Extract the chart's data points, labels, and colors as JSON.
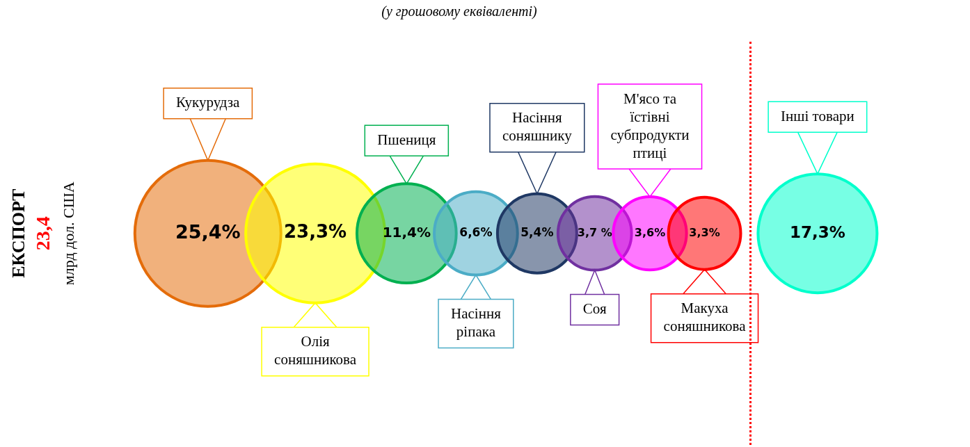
{
  "chart_data": {
    "type": "other",
    "subtitle": "(у грошовому еквіваленті)",
    "categories": [
      "Кукурудза",
      "Олія соняшникова",
      "Пшениця",
      "Насіння ріпака",
      "Насіння соняшнику",
      "Соя",
      "М'ясо та їстівні субпродукти птиці",
      "Макуха соняшникова",
      "Інші товари"
    ],
    "values": [
      25.4,
      23.3,
      11.4,
      6.6,
      5.4,
      3.7,
      3.6,
      3.3,
      17.3
    ],
    "value_labels": [
      "25,4%",
      "23,3%",
      "11,4%",
      "6,6%",
      "5,4%",
      "3,7 %",
      "3,6%",
      "3,3%",
      "17,3%"
    ],
    "colors": [
      "#e46c0a",
      "#ffff00",
      "#00b050",
      "#4bacc6",
      "#1f3864",
      "#7030a0",
      "#ff00ff",
      "#ff0000",
      "#00ffcc"
    ],
    "annotations": [
      "ЕКСПОРТ",
      "23,4",
      "млрд дол. США"
    ]
  }
}
